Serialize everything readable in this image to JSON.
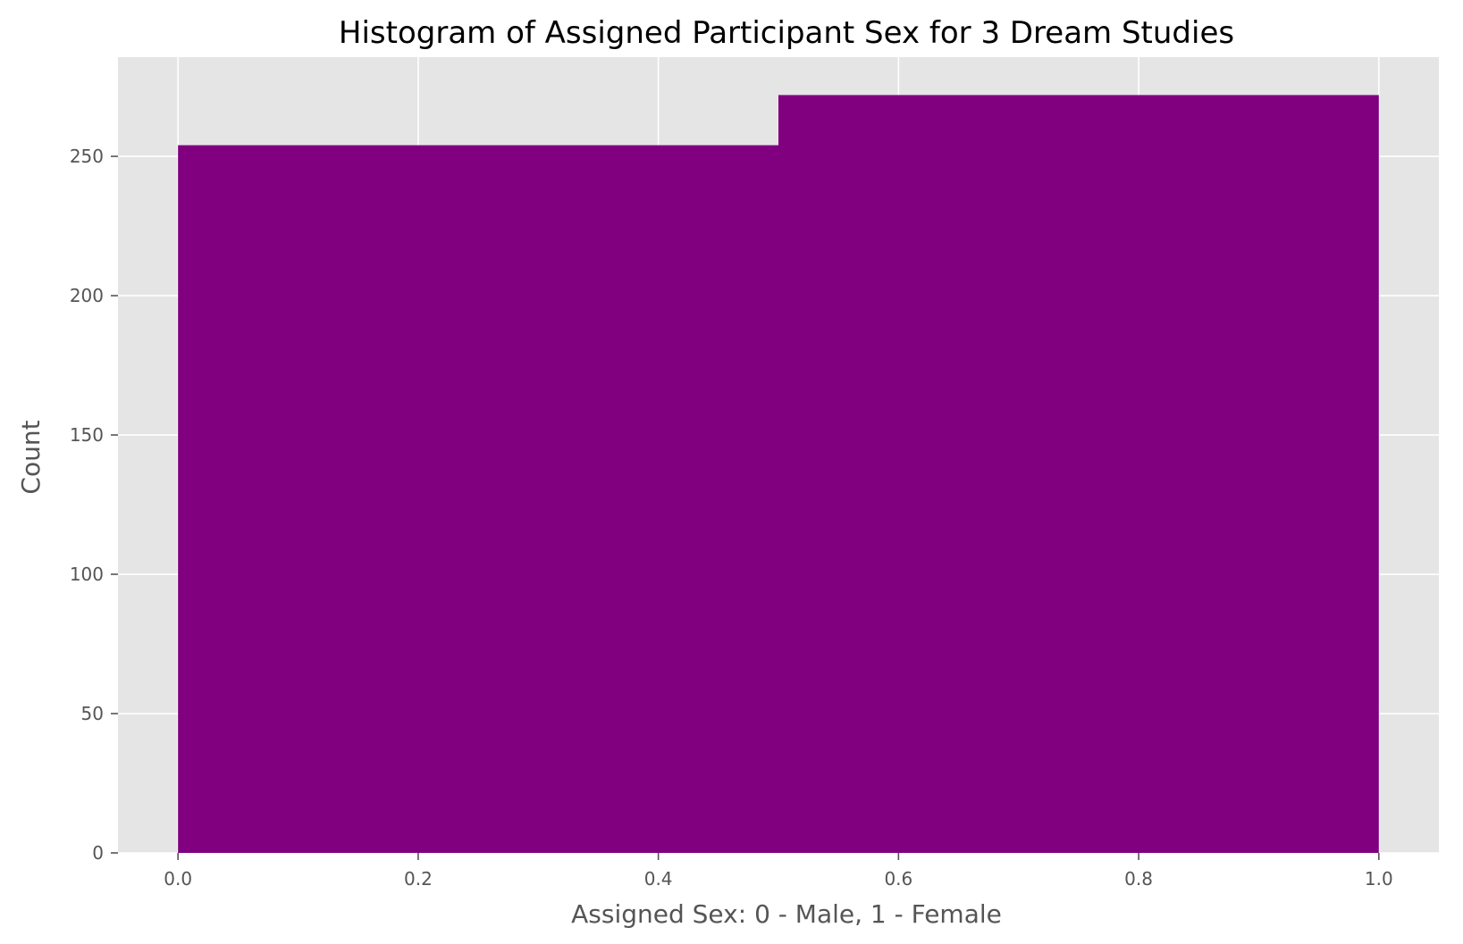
{
  "chart_data": {
    "type": "bar",
    "title": "Histogram of Assigned Participant Sex for 3 Dream Studies",
    "xlabel": "Assigned Sex: 0 - Male, 1 - Female",
    "ylabel": "Count",
    "bins": [
      {
        "x0": 0.0,
        "x1": 0.5,
        "value": 254
      },
      {
        "x0": 0.5,
        "x1": 1.0,
        "value": 272
      }
    ],
    "xlim": [
      -0.05,
      1.05
    ],
    "ylim": [
      0,
      285.6
    ],
    "xticks": [
      0.0,
      0.2,
      0.4,
      0.6,
      0.8,
      1.0
    ],
    "xtick_labels": [
      "0.0",
      "0.2",
      "0.4",
      "0.6",
      "0.8",
      "1.0"
    ],
    "yticks": [
      0,
      50,
      100,
      150,
      200,
      250
    ],
    "ytick_labels": [
      "0",
      "50",
      "100",
      "150",
      "200",
      "250"
    ],
    "grid": true,
    "colors": {
      "bar": "#800080",
      "background": "#e5e5e5",
      "grid": "#ffffff",
      "tick_text": "#555555",
      "title_text": "#000000"
    }
  }
}
